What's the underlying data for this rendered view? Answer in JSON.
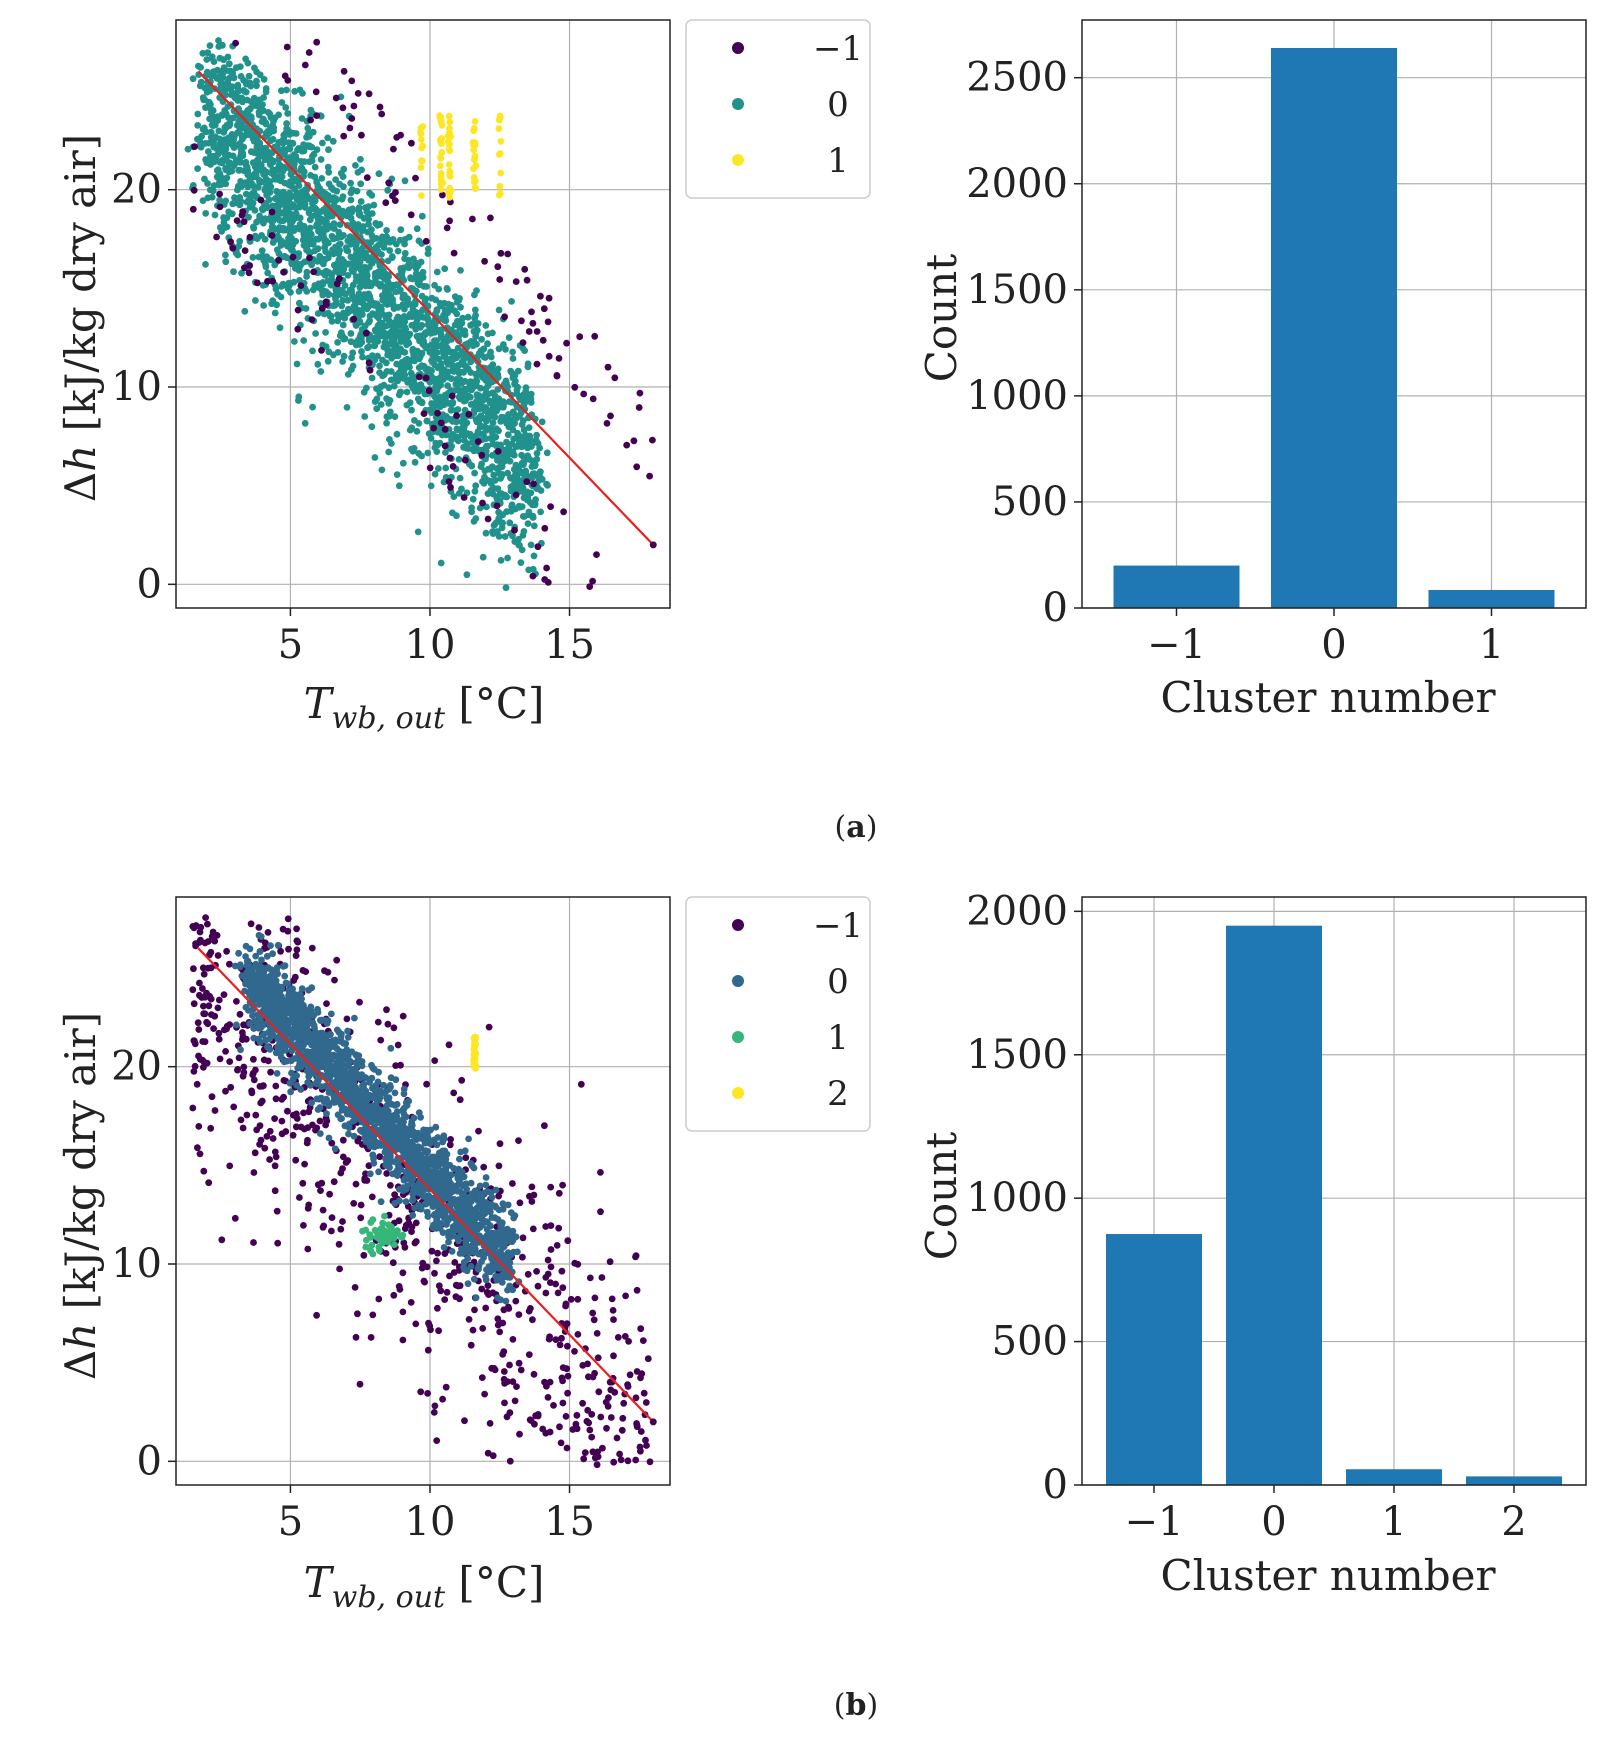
{
  "captions": {
    "a_open": "(",
    "a_letter": "a",
    "a_close": ")",
    "b_open": "(",
    "b_letter": "b",
    "b_close": ")"
  },
  "scatter_axis": {
    "ylabel_delta": "Δ",
    "ylabel_var": "h",
    "ylabel_unit": " [kJ/kg dry air]",
    "xlabel_var": "T",
    "xlabel_sub": "wb, out",
    "xlabel_unit": " [°C]"
  },
  "colors": {
    "cluster_m1": "#440154",
    "cluster_0_a": "#21918c",
    "cluster_1_a": "#fde725",
    "cluster_0_b": "#31688e",
    "cluster_1_b": "#35b779",
    "cluster_2_b": "#fde725",
    "fit_line": "#e8211f",
    "bar": "#1f77b4",
    "grid": "#b0b0b0"
  },
  "chart_data": [
    {
      "id": "a-scatter",
      "type": "scatter",
      "title": "",
      "xlabel": "Twb,out [°C]",
      "ylabel": "Δh [kJ/kg dry air]",
      "xlim": [
        0.9,
        18.6
      ],
      "ylim": [
        -1.2,
        28.6
      ],
      "xticks": [
        5,
        10,
        15
      ],
      "yticks": [
        0,
        10,
        20
      ],
      "grid": true,
      "legend_position": "outside-right",
      "legend": [
        {
          "label": "−1",
          "color": "#440154"
        },
        {
          "label": "0",
          "color": "#21918c"
        },
        {
          "label": "1",
          "color": "#fde725"
        }
      ],
      "fit_line": {
        "x": [
          1.7,
          18.0
        ],
        "y": [
          26.0,
          2.0
        ]
      },
      "clusters": [
        {
          "name": "0",
          "color": "#21918c",
          "count": 2640,
          "generator": {
            "kind": "band",
            "x_range": [
              1.8,
              13.8
            ],
            "y_at_x": [
              [
                2,
                25.3
              ],
              [
                14,
                6.6
              ]
            ],
            "spread": 3.8,
            "skew": -1.5
          }
        },
        {
          "name": "−1",
          "color": "#440154",
          "count": 200,
          "generator": {
            "kind": "outliers",
            "x_range": [
              1.5,
              18.0
            ],
            "y_range": [
              0,
              27.5
            ]
          }
        },
        {
          "name": "1",
          "color": "#fde725",
          "count": 85,
          "generator": {
            "kind": "stripes",
            "xs": [
              9.7,
              10.4,
              10.7,
              11.6,
              12.5
            ],
            "y_range": [
              19.6,
              23.8
            ]
          }
        }
      ]
    },
    {
      "id": "a-bar",
      "type": "bar",
      "title": "",
      "xlabel": "Cluster number",
      "ylabel": "Count",
      "categories": [
        "−1",
        "0",
        "1"
      ],
      "values": [
        200,
        2640,
        85
      ],
      "ylim": [
        0,
        2772
      ],
      "yticks": [
        0,
        500,
        1000,
        1500,
        2000,
        2500
      ],
      "grid": true
    },
    {
      "id": "b-scatter",
      "type": "scatter",
      "title": "",
      "xlabel": "Twb,out [°C]",
      "ylabel": "Δh [kJ/kg dry air]",
      "xlim": [
        0.9,
        18.6
      ],
      "ylim": [
        -1.2,
        28.6
      ],
      "xticks": [
        5,
        10,
        15
      ],
      "yticks": [
        0,
        10,
        20
      ],
      "grid": true,
      "legend_position": "outside-right",
      "legend": [
        {
          "label": "−1",
          "color": "#440154"
        },
        {
          "label": "0",
          "color": "#31688e"
        },
        {
          "label": "1",
          "color": "#35b779"
        },
        {
          "label": "2",
          "color": "#fde725"
        }
      ],
      "fit_line": {
        "x": [
          1.7,
          18.0
        ],
        "y": [
          26.0,
          2.0
        ]
      },
      "clusters": [
        {
          "name": "−1",
          "color": "#440154",
          "count": 875,
          "generator": {
            "kind": "wide-band",
            "x_range": [
              1.5,
              18.0
            ],
            "y_range": [
              0,
              27.5
            ]
          }
        },
        {
          "name": "0",
          "color": "#31688e",
          "count": 1950,
          "generator": {
            "kind": "band",
            "x_range": [
              3.5,
              12.8
            ],
            "y_at_x": [
              [
                3.5,
                24.5
              ],
              [
                12.8,
                10.2
              ]
            ],
            "spread": 2.2,
            "skew": 0
          }
        },
        {
          "name": "1",
          "color": "#35b779",
          "count": 55,
          "generator": {
            "kind": "blob",
            "center": [
              8.3,
              11.6
            ],
            "radius": [
              0.7,
              0.8
            ]
          }
        },
        {
          "name": "2",
          "color": "#fde725",
          "count": 30,
          "generator": {
            "kind": "stripes",
            "xs": [
              11.6
            ],
            "y_range": [
              19.8,
              21.5
            ]
          }
        }
      ]
    },
    {
      "id": "b-bar",
      "type": "bar",
      "title": "",
      "xlabel": "Cluster number",
      "ylabel": "Count",
      "categories": [
        "−1",
        "0",
        "1",
        "2"
      ],
      "values": [
        875,
        1950,
        55,
        30
      ],
      "ylim": [
        0,
        2050
      ],
      "yticks": [
        0,
        500,
        1000,
        1500,
        2000
      ],
      "grid": true
    }
  ]
}
